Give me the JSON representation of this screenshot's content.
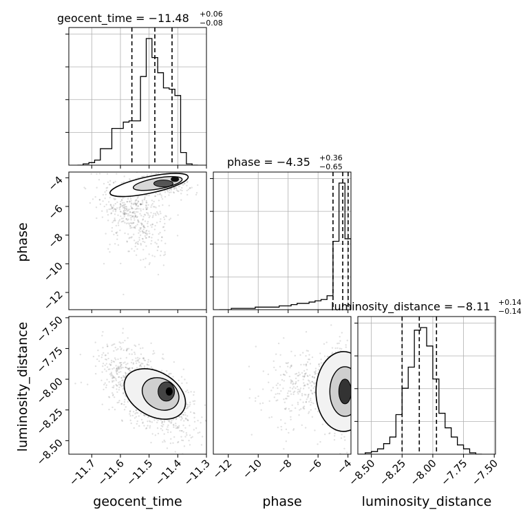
{
  "params": [
    {
      "name": "geocent_time",
      "median": -11.48,
      "lo": -11.56,
      "hi": -11.42,
      "title_main": "geocent_time = −11.48",
      "title_sup": "+0.06",
      "title_sub": "−0.08"
    },
    {
      "name": "phase",
      "median": -4.35,
      "lo": -5.0,
      "hi": -3.99,
      "title_main": "phase = −4.35",
      "title_sup": "+0.36",
      "title_sub": "−0.65"
    },
    {
      "name": "luminosity_distance",
      "median": -8.11,
      "lo": -8.25,
      "hi": -7.97,
      "title_main": "luminosity_distance = −8.11",
      "title_sup": "+0.14",
      "title_sub": "−0.14"
    }
  ],
  "chart_data": [
    {
      "type": "histogram",
      "panel": "geocent_time",
      "xlabel": "geocent_time",
      "xlim": [
        -11.78,
        -11.3
      ],
      "xticks": [
        -11.7,
        -11.6,
        -11.5,
        -11.4,
        -11.3
      ],
      "xtick_labels": [
        "−11.7",
        "−11.6",
        "−11.5",
        "−11.4",
        "−11.3"
      ],
      "grid": true,
      "bin_edges": [
        -11.75,
        -11.73,
        -11.71,
        -11.69,
        -11.67,
        -11.65,
        -11.63,
        -11.61,
        -11.59,
        -11.57,
        -11.55,
        -11.53,
        -11.51,
        -11.49,
        -11.47,
        -11.45,
        -11.43,
        -11.41,
        -11.39,
        -11.37,
        -11.35,
        -11.33
      ],
      "counts": [
        0.0,
        0.01,
        0.02,
        0.04,
        0.13,
        0.13,
        0.29,
        0.29,
        0.34,
        0.35,
        0.35,
        0.7,
        1.0,
        0.85,
        0.73,
        0.61,
        0.6,
        0.55,
        0.1,
        0.01,
        0.0
      ],
      "quantile_lines": [
        -11.56,
        -11.48,
        -11.42
      ]
    },
    {
      "type": "scatter-contour",
      "panel": "phase vs geocent_time",
      "xlabel": "geocent_time",
      "ylabel": "phase",
      "xlim": [
        -11.78,
        -11.3
      ],
      "ylim": [
        -13.2,
        -3.6
      ],
      "yticks": [
        -12,
        -10,
        -8,
        -6,
        -4
      ],
      "ytick_labels": [
        "−12",
        "−10",
        "−8",
        "−6",
        "−4"
      ],
      "density_peak": {
        "x": -11.45,
        "y": -4.4
      }
    },
    {
      "type": "histogram",
      "panel": "phase",
      "xlabel": "phase",
      "xlim": [
        -13.0,
        -3.8
      ],
      "xticks": [
        -12,
        -10,
        -8,
        -6,
        -4
      ],
      "xtick_labels": [
        "−12",
        "−10",
        "−8",
        "−6",
        "−4"
      ],
      "grid": true,
      "bin_edges": [
        -12.6,
        -12.2,
        -11.8,
        -11.4,
        -11.0,
        -10.6,
        -10.2,
        -9.8,
        -9.4,
        -9.0,
        -8.6,
        -8.2,
        -7.8,
        -7.4,
        -7.0,
        -6.6,
        -6.2,
        -5.8,
        -5.4,
        -5.0,
        -4.6,
        -4.2,
        -3.8
      ],
      "counts": [
        0.0,
        0.0,
        0.01,
        0.01,
        0.01,
        0.01,
        0.02,
        0.02,
        0.02,
        0.02,
        0.03,
        0.03,
        0.04,
        0.05,
        0.05,
        0.06,
        0.07,
        0.08,
        0.11,
        0.54,
        1.0,
        0.56
      ],
      "quantile_lines": [
        -5.0,
        -4.35,
        -3.99
      ]
    },
    {
      "type": "scatter-contour",
      "panel": "luminosity_distance vs geocent_time",
      "xlabel": "geocent_time",
      "ylabel": "luminosity_distance",
      "xlim": [
        -11.78,
        -11.3
      ],
      "ylim": [
        -8.61,
        -7.49
      ],
      "yticks": [
        -8.5,
        -8.25,
        -8.0,
        -7.75,
        -7.5
      ],
      "ytick_labels": [
        "−8.50",
        "−8.25",
        "−8.00",
        "−7.75",
        "−7.50"
      ],
      "density_peak": {
        "x": -11.44,
        "y": -8.1
      }
    },
    {
      "type": "scatter-contour",
      "panel": "luminosity_distance vs phase",
      "xlabel": "phase",
      "ylabel": "luminosity_distance",
      "xlim": [
        -13.0,
        -3.8
      ],
      "ylim": [
        -8.61,
        -7.49
      ],
      "density_peak": {
        "x": -4.2,
        "y": -8.1
      }
    },
    {
      "type": "histogram",
      "panel": "luminosity_distance",
      "xlabel": "luminosity_distance",
      "xlim": [
        -8.61,
        -7.49
      ],
      "xticks": [
        -8.5,
        -8.25,
        -8.0,
        -7.75,
        -7.5
      ],
      "xtick_labels": [
        "−8.50",
        "−8.25",
        "−8.00",
        "−7.75",
        "−7.50"
      ],
      "grid": true,
      "bin_edges": [
        -8.6,
        -8.55,
        -8.5,
        -8.45,
        -8.4,
        -8.35,
        -8.3,
        -8.25,
        -8.2,
        -8.15,
        -8.1,
        -8.05,
        -8.0,
        -7.95,
        -7.9,
        -7.85,
        -7.8,
        -7.75,
        -7.7,
        -7.65,
        -7.6
      ],
      "counts": [
        0.0,
        0.01,
        0.02,
        0.04,
        0.08,
        0.13,
        0.3,
        0.5,
        0.66,
        0.94,
        0.96,
        0.82,
        0.57,
        0.31,
        0.2,
        0.13,
        0.07,
        0.04,
        0.01,
        0.0
      ],
      "quantile_lines": [
        -8.25,
        -8.11,
        -7.97
      ]
    }
  ]
}
